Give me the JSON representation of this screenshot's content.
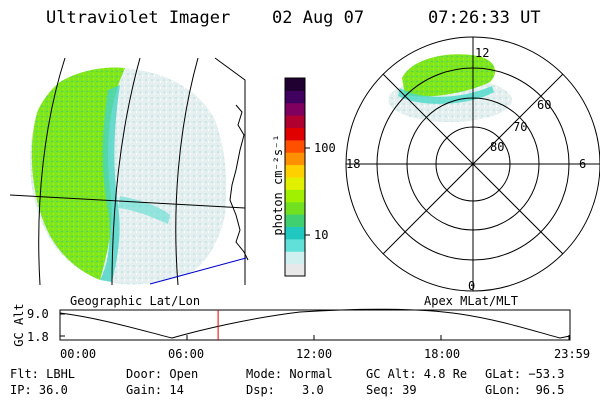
{
  "header": {
    "instrument": "Ultraviolet Imager",
    "date": "02 Aug 07",
    "time": "07:26:33 UT"
  },
  "colorbar": {
    "label_html": "photon cm⁻²s⁻¹",
    "tick_100": "100",
    "tick_10": "10",
    "colors": [
      "#e8e8e8",
      "#d0f0f0",
      "#60e0d8",
      "#20c8c0",
      "#40d070",
      "#70e020",
      "#a0f000",
      "#e0f000",
      "#ffd000",
      "#ff9000",
      "#ff5000",
      "#e00000",
      "#b00030",
      "#800060",
      "#400060",
      "#200030"
    ]
  },
  "polar": {
    "mlt_12": "12",
    "mlt_18": "18",
    "mlt_6": "6",
    "mlt_0": "0",
    "lat_60": "60",
    "lat_70": "70",
    "lat_80": "80"
  },
  "captions": {
    "left": "Geographic Lat/Lon",
    "right": "Apex MLat/MLT"
  },
  "timeline": {
    "ylabel": "GC Alt",
    "y_hi": "9.0",
    "y_lo": "1.8",
    "xticks": [
      "00:00",
      "06:00",
      "12:00",
      "18:00",
      "23:59"
    ],
    "marker_time_fraction": 0.31,
    "marker_color": "#dd0000"
  },
  "info": {
    "flt": "Flt: LBHL",
    "ip": "IP: 36.0",
    "door": "Door: Open",
    "gain": "Gain: 14",
    "mode": "Mode: Normal",
    "dsp_label": "Dsp:",
    "dsp_value": "3.0",
    "gcalt": "GC Alt: 4.8 Re",
    "seq": "Seq: 39",
    "glat": "GLat: −53.3",
    "glon": "GLon:  96.5"
  }
}
